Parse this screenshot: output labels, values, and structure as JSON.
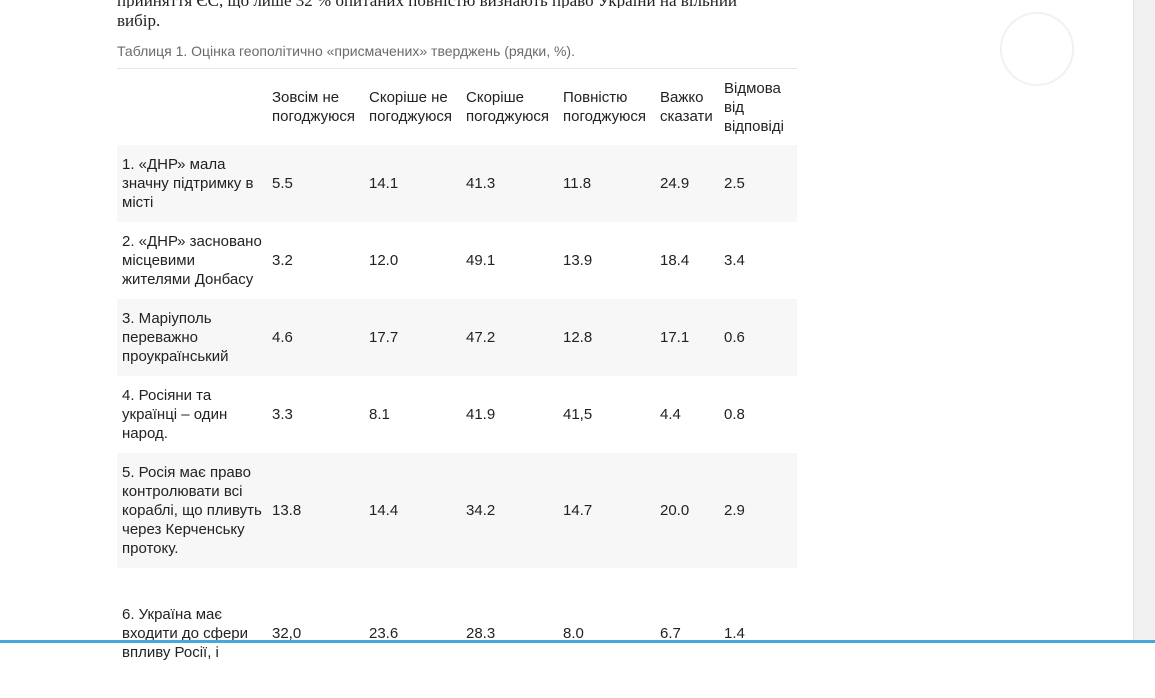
{
  "article": {
    "top_text_line1": "прийняття ЄС, що лише 32 % опитаних повністю визнають право України на вільний",
    "top_text_line2": "вибір."
  },
  "table": {
    "caption": "Таблиця 1. Оцінка геополітично «присмачених» тверджень (рядки, %).",
    "headers": [
      "",
      "Зовсім не погоджуюся",
      "Скоріше не погоджуюся",
      "Скоріше погоджуюся",
      "Повністю погоджуюся",
      "Важко сказати",
      "Відмова від відповіді"
    ],
    "rows": [
      {
        "label": "1. «ДНР» мала значну підтримку в місті",
        "values": [
          "5.5",
          "14.1",
          "41.3",
          "11.8",
          "24.9",
          "2.5"
        ]
      },
      {
        "label": "2. «ДНР» засновано місцевими жителями Донбасу",
        "values": [
          "3.2",
          "12.0",
          "49.1",
          "13.9",
          "18.4",
          "3.4"
        ]
      },
      {
        "label": "3. Маріуполь переважно проукраїнський",
        "values": [
          "4.6",
          "17.7",
          "47.2",
          "12.8",
          "17.1",
          "0.6"
        ]
      },
      {
        "label": "4. Росіяни та українці – один народ.",
        "values": [
          "3.3",
          "8.1",
          "41.9",
          "41,5",
          "4.4",
          "0.8"
        ]
      },
      {
        "label": "5. Росія має право контролювати всі кораблі, що пливуть через Керченську протоку.",
        "values": [
          "13.8",
          "14.4",
          "34.2",
          "14.7",
          "20.0",
          "2.9"
        ]
      },
      {
        "label": "6. Україна має входити до сфери впливу Росії, і",
        "values": [
          "32,0",
          "23.6",
          "28.3",
          "8.0",
          "6.7",
          "1.4"
        ]
      }
    ]
  },
  "colors": {
    "stripe": "#f7f7f7",
    "caption_text": "#6b6b6b",
    "accent_line": "#4aa8d8"
  }
}
